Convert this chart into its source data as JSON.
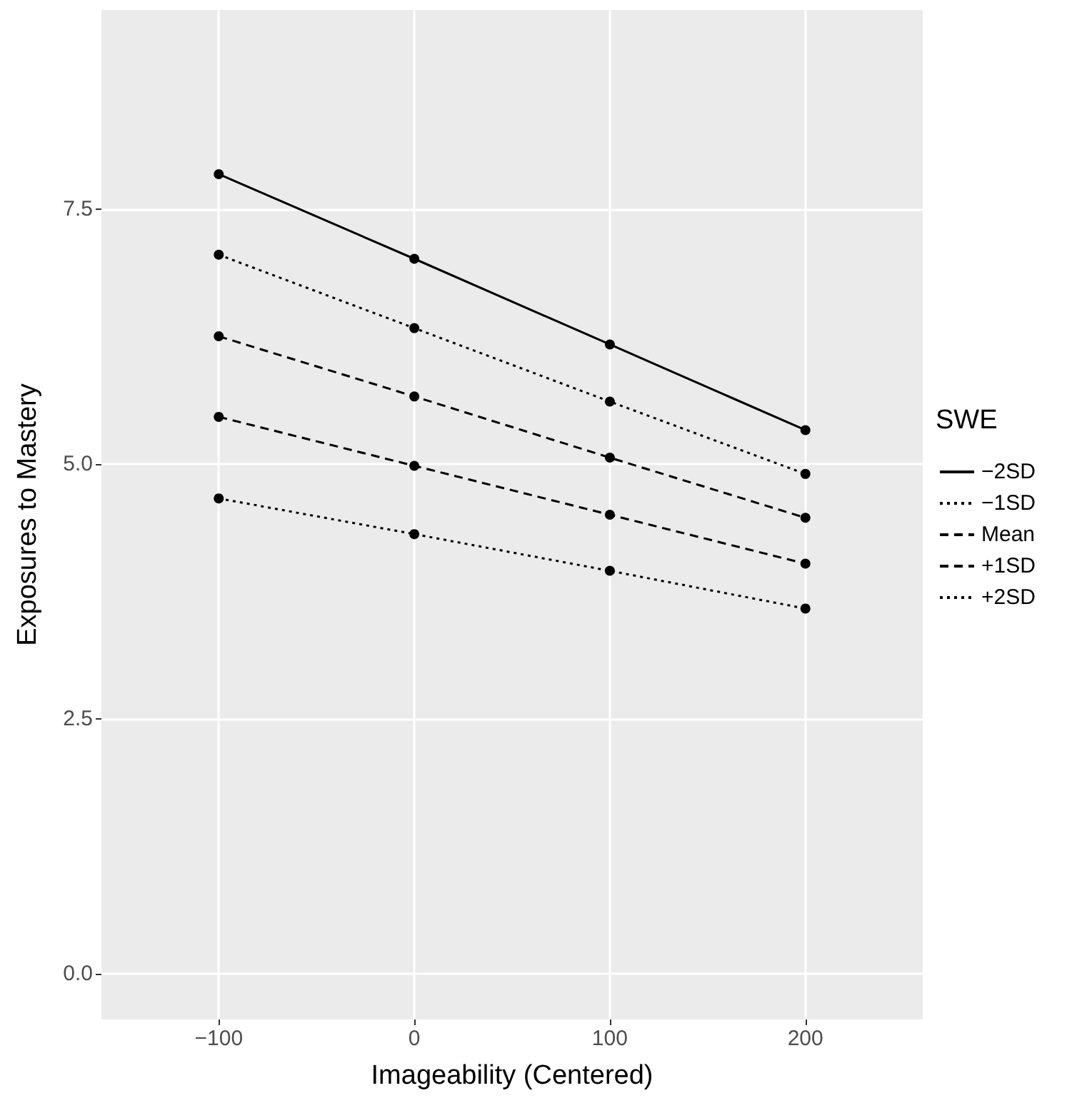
{
  "chart_data": {
    "type": "line",
    "xlabel": "Imageability (Centered)",
    "ylabel": "Exposures to Mastery",
    "legend_title": "SWE",
    "x": [
      -100,
      0,
      100,
      200
    ],
    "series": [
      {
        "name": "−2SD",
        "color": "#000000",
        "line_style": "solid",
        "values": [
          7.84,
          7.01,
          6.17,
          5.33
        ]
      },
      {
        "name": "−1SD",
        "color": "#000000",
        "line_style": "dotted",
        "values": [
          7.05,
          6.33,
          5.61,
          4.9
        ]
      },
      {
        "name": "Mean",
        "color": "#000000",
        "line_style": "dashed",
        "values": [
          6.25,
          5.66,
          5.06,
          4.47
        ]
      },
      {
        "name": "+1SD",
        "color": "#000000",
        "line_style": "dashed",
        "values": [
          5.46,
          4.98,
          4.5,
          4.02
        ]
      },
      {
        "name": "+2SD",
        "color": "#000000",
        "line_style": "dotted",
        "values": [
          4.66,
          4.31,
          3.95,
          3.58
        ]
      }
    ],
    "xlim": [
      -160,
      260
    ],
    "xticks": [
      {
        "value": -100,
        "label": "−100"
      },
      0,
      100,
      200
    ],
    "ylim": [
      -0.45,
      9.45
    ],
    "yticks": [
      {
        "value": 0,
        "label": "0.0"
      },
      {
        "value": 2.5,
        "label": "2.5"
      },
      {
        "value": 5,
        "label": "5.0"
      },
      {
        "value": 7.5,
        "label": "7.5"
      }
    ],
    "grid": true,
    "legend": "right",
    "marker": "circle"
  }
}
